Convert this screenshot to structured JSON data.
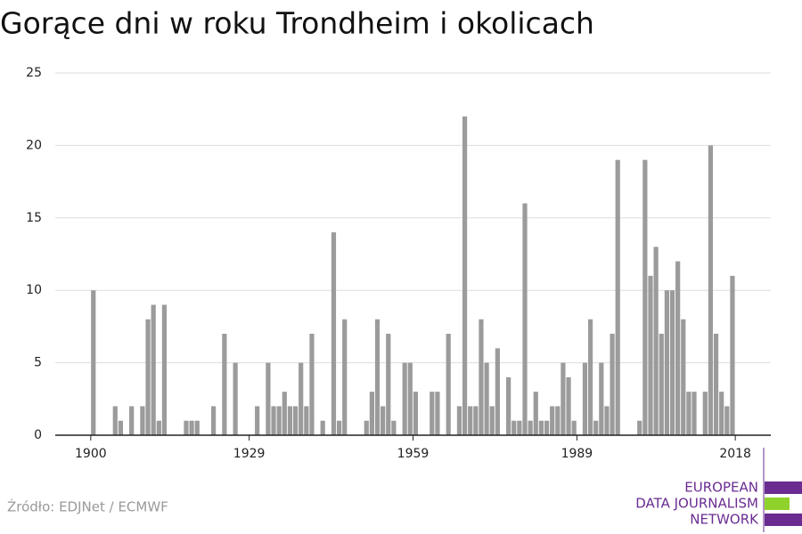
{
  "chart_data": {
    "type": "bar",
    "title": "Gorące dni w roku Trondheim i okolicach",
    "x": [
      1900,
      1901,
      1902,
      1903,
      1904,
      1905,
      1906,
      1907,
      1908,
      1909,
      1910,
      1911,
      1912,
      1913,
      1914,
      1915,
      1916,
      1917,
      1918,
      1919,
      1920,
      1921,
      1922,
      1923,
      1924,
      1925,
      1926,
      1927,
      1928,
      1929,
      1930,
      1931,
      1932,
      1933,
      1934,
      1935,
      1936,
      1937,
      1938,
      1939,
      1940,
      1941,
      1942,
      1943,
      1944,
      1945,
      1946,
      1947,
      1948,
      1949,
      1950,
      1951,
      1952,
      1953,
      1954,
      1955,
      1956,
      1957,
      1958,
      1959,
      1960,
      1961,
      1962,
      1963,
      1964,
      1965,
      1966,
      1967,
      1968,
      1969,
      1970,
      1971,
      1972,
      1973,
      1974,
      1975,
      1976,
      1977,
      1978,
      1979,
      1980,
      1981,
      1982,
      1983,
      1984,
      1985,
      1986,
      1987,
      1988,
      1989,
      1990,
      1991,
      1992,
      1993,
      1994,
      1995,
      1996,
      1997,
      1998,
      1999,
      2000,
      2001,
      2002,
      2003,
      2004,
      2005,
      2006,
      2007,
      2008,
      2009,
      2010,
      2011,
      2012,
      2013,
      2014,
      2015,
      2016,
      2017
    ],
    "values": [
      10,
      0,
      0,
      0,
      2,
      1,
      0,
      2,
      0,
      2,
      8,
      9,
      1,
      9,
      0,
      0,
      0,
      1,
      1,
      1,
      0,
      0,
      2,
      0,
      7,
      0,
      5,
      0,
      0,
      0,
      2,
      0,
      5,
      2,
      2,
      3,
      2,
      2,
      5,
      2,
      7,
      0,
      1,
      0,
      14,
      1,
      8,
      0,
      0,
      0,
      1,
      3,
      8,
      2,
      7,
      1,
      0,
      5,
      5,
      3,
      0,
      0,
      3,
      3,
      0,
      7,
      0,
      2,
      22,
      2,
      2,
      8,
      5,
      2,
      6,
      0,
      4,
      1,
      1,
      16,
      1,
      3,
      1,
      1,
      2,
      2,
      5,
      4,
      1,
      0,
      5,
      8,
      1,
      5,
      2,
      7,
      19,
      0,
      0,
      0,
      1,
      19,
      11,
      13,
      7,
      10,
      10,
      12,
      8,
      3,
      3,
      0,
      3,
      20,
      7,
      3,
      2,
      11
    ],
    "color": "#9b9b9b",
    "xlim": [
      1893.5,
      2024.5
    ],
    "xticks": [
      1900,
      1929,
      1959,
      1989,
      2018
    ],
    "ylim": [
      0,
      25
    ],
    "yticks": [
      0,
      5,
      10,
      15,
      20,
      25
    ],
    "grid": true
  },
  "source": "Źródło: EDJNet / ECMWF",
  "logo": [
    "EUROPEAN",
    "DATA JOURNALISM",
    "NETWORK"
  ]
}
